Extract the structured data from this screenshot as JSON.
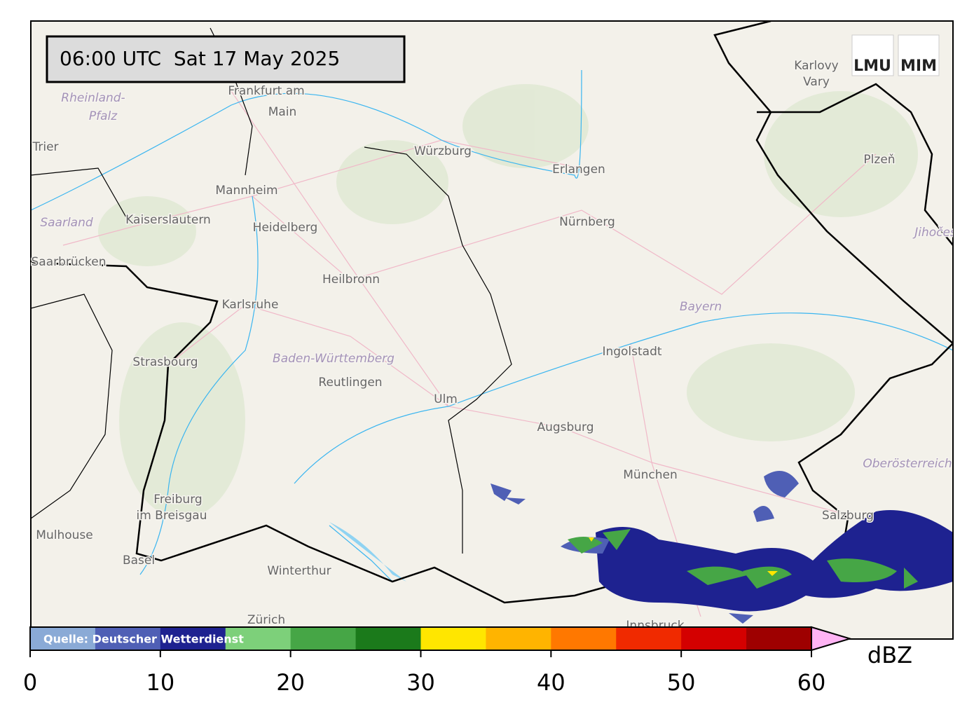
{
  "timestamp": "06:00 UTC  Sat 17 May 2025",
  "logos": [
    "LMU",
    "MIM"
  ],
  "source": "Quelle: Deutscher Wetterdienst",
  "places": [
    "Frankfurt am",
    "Main",
    "Rheinland-",
    "Pfalz",
    "Trier",
    "Mannheim",
    "Kaiserslautern",
    "Heidelberg",
    "Saarland",
    "Saarbrücken",
    "Karlsruhe",
    "Heilbronn",
    "Strasbourg",
    "Baden-Württemberg",
    "Reutlingen",
    "Ulm",
    "Würzburg",
    "Erlangen",
    "Nürnberg",
    "Bayern",
    "Ingolstadt",
    "Augsburg",
    "München",
    "Freiburg",
    "im Breisgau",
    "Mulhouse",
    "Basel",
    "Winterthur",
    "Zürich",
    "Innsbruck",
    "Salzburg",
    "Oberösterreich",
    "Karlovy",
    "Vary",
    "Plzeň",
    "Jihočeský"
  ],
  "colorbar": {
    "label": "dBZ",
    "bounds": [
      0,
      5,
      10,
      15,
      20,
      25,
      30,
      35,
      40,
      45,
      50,
      55,
      60
    ],
    "colors": [
      "#8aaad6",
      "#4f5fb5",
      "#1e2290",
      "#7dd07a",
      "#46a646",
      "#1b7a1b",
      "#ffe600",
      "#ffb400",
      "#ff7800",
      "#f02a00",
      "#d40000",
      "#9e0000"
    ],
    "extend_color": "#ffb4f4",
    "lim": [
      0,
      60
    ],
    "ticks": [
      0,
      10,
      20,
      30,
      40,
      50,
      60
    ]
  }
}
